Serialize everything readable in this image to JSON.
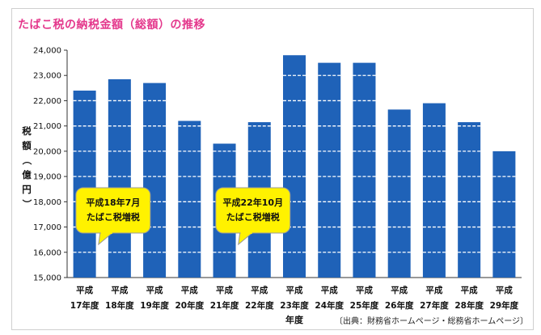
{
  "chart_data": {
    "type": "bar",
    "title": "たばこ税の納税金額（総額）の推移",
    "ylabel": "税額（億円）",
    "xlabel": "年度",
    "ylim": [
      15000,
      24000
    ],
    "yticks": [
      15000,
      16000,
      17000,
      18000,
      19000,
      20000,
      21000,
      22000,
      23000,
      24000
    ],
    "ytick_labels": [
      "15,000",
      "16,000",
      "17,000",
      "18,000",
      "19,000",
      "20,000",
      "21,000",
      "22,000",
      "23,000",
      "24,000"
    ],
    "categories": [
      {
        "era": "平成",
        "year": "17年度"
      },
      {
        "era": "平成",
        "year": "18年度"
      },
      {
        "era": "平成",
        "year": "19年度"
      },
      {
        "era": "平成",
        "year": "20年度"
      },
      {
        "era": "平成",
        "year": "21年度"
      },
      {
        "era": "平成",
        "year": "22年度"
      },
      {
        "era": "平成",
        "year": "23年度"
      },
      {
        "era": "平成",
        "year": "24年度"
      },
      {
        "era": "平成",
        "year": "25年度"
      },
      {
        "era": "平成",
        "year": "26年度"
      },
      {
        "era": "平成",
        "year": "27年度"
      },
      {
        "era": "平成",
        "year": "28年度"
      },
      {
        "era": "平成",
        "year": "29年度"
      }
    ],
    "values": [
      22400,
      22850,
      22700,
      21200,
      20300,
      21150,
      23800,
      23500,
      23500,
      21650,
      21900,
      21150,
      20000
    ],
    "bar_color": "#1f62b8",
    "gridlines": "dashed-white-inside-bars",
    "annotations": [
      {
        "lines": [
          "平成18年7月",
          "たばこ税増税"
        ],
        "category_index": 1
      },
      {
        "lines": [
          "平成22年10月",
          "たばこ税増税"
        ],
        "category_index": 5
      }
    ],
    "callout_color": "#fff200",
    "source": "〔出典：財務省ホームページ・総務省ホームページ〕"
  }
}
